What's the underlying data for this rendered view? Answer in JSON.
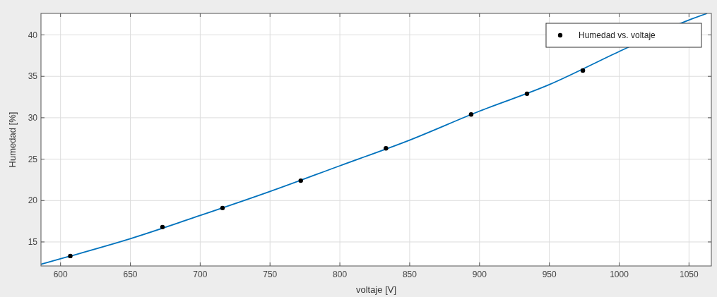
{
  "chart_data": {
    "type": "scatter",
    "xlabel": "voltaje [V]",
    "ylabel": "Humedad [%]",
    "xlim": [
      586,
      1066
    ],
    "ylim": [
      12.1,
      42.6
    ],
    "xticks": [
      600,
      650,
      700,
      750,
      800,
      850,
      900,
      950,
      1000,
      1050
    ],
    "yticks": [
      15,
      20,
      25,
      30,
      35,
      40
    ],
    "grid": true,
    "legend": "top right",
    "series": [
      {
        "type": "line",
        "marker": "none",
        "color": "#0072bd",
        "x": [
          586,
          607,
          650,
          700,
          750,
          800,
          850,
          900,
          950,
          1000,
          1050,
          1063
        ],
        "values": [
          12.3,
          13.3,
          15.4,
          18.2,
          21.1,
          24.2,
          27.3,
          30.8,
          34.0,
          38.0,
          41.8,
          42.6
        ]
      },
      {
        "name": "Humedad vs. voltaje",
        "marker": "circle",
        "color": "#000000",
        "x": [
          607,
          673,
          716,
          772,
          833,
          894,
          934,
          974
        ],
        "values": [
          13.3,
          16.8,
          19.1,
          22.4,
          26.3,
          30.4,
          32.9,
          35.7
        ]
      }
    ]
  }
}
